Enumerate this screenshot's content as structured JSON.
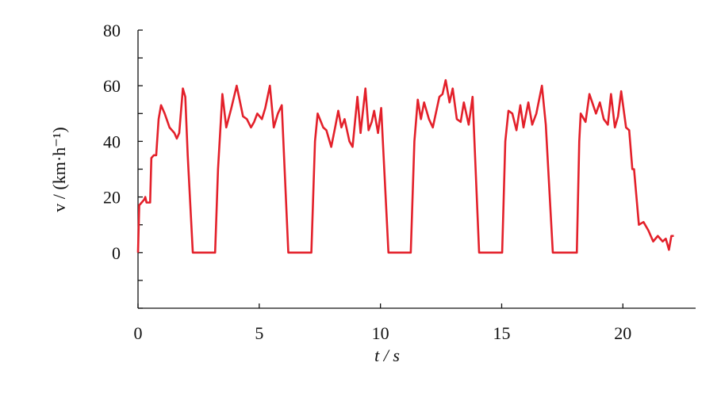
{
  "chart_data": {
    "type": "line",
    "x_label": "t / s",
    "y_label": "v / (km·h⁻¹)",
    "color": "#e3202a",
    "x": [
      0,
      0.05,
      0.15,
      0.25,
      0.3,
      0.35,
      0.5,
      0.55,
      0.65,
      0.75,
      0.85,
      0.95,
      1.1,
      1.3,
      1.5,
      1.6,
      1.7,
      1.85,
      1.95,
      2.05,
      2.26,
      3.18,
      3.3,
      3.48,
      3.64,
      3.85,
      4.07,
      4.33,
      4.49,
      4.66,
      4.79,
      4.92,
      5.11,
      5.25,
      5.44,
      5.6,
      5.77,
      5.93,
      6.2,
      7.15,
      7.3,
      7.41,
      7.64,
      7.77,
      7.97,
      8.13,
      8.26,
      8.39,
      8.52,
      8.72,
      8.85,
      9.05,
      9.18,
      9.38,
      9.51,
      9.64,
      9.74,
      9.9,
      10.03,
      10.33,
      11.25,
      11.4,
      11.54,
      11.67,
      11.8,
      12.0,
      12.16,
      12.43,
      12.56,
      12.69,
      12.85,
      12.98,
      13.15,
      13.31,
      13.44,
      13.64,
      13.8,
      14.07,
      15.02,
      15.15,
      15.28,
      15.44,
      15.61,
      15.77,
      15.9,
      16.1,
      16.26,
      16.43,
      16.66,
      16.82,
      17.11,
      18.1,
      18.2,
      18.26,
      18.46,
      18.62,
      18.89,
      19.05,
      19.21,
      19.38,
      19.51,
      19.67,
      19.8,
      19.93,
      20.13,
      20.26,
      20.39,
      20.46,
      20.56,
      20.66,
      20.85,
      21.05,
      21.25,
      21.44,
      21.64,
      21.77,
      21.9,
      22.0,
      22.1
    ],
    "values": [
      0,
      17,
      18,
      19,
      20,
      18,
      18,
      34,
      35,
      35,
      48,
      53,
      50,
      45,
      43,
      41,
      43,
      59,
      56,
      35,
      0,
      0,
      30,
      57,
      45,
      52,
      60,
      49,
      48,
      45,
      47,
      50,
      48,
      52,
      60,
      45,
      50,
      53,
      0,
      0,
      40,
      50,
      45,
      44,
      38,
      45,
      51,
      45,
      48,
      40,
      38,
      56,
      43,
      59,
      44,
      47,
      51,
      43,
      52,
      0,
      0,
      40,
      55,
      48,
      54,
      48,
      45,
      56,
      57,
      62,
      54,
      59,
      48,
      47,
      54,
      46,
      56,
      0,
      0,
      40,
      51,
      50,
      44,
      53,
      45,
      54,
      46,
      50,
      60,
      46,
      0,
      0,
      40,
      50,
      47,
      57,
      50,
      54,
      48,
      46,
      57,
      45,
      49,
      58,
      45,
      44,
      30,
      30,
      20,
      10,
      11,
      8,
      4,
      6,
      4,
      5,
      1,
      6,
      6
    ],
    "xlim": [
      0,
      23
    ],
    "ylim": [
      -20,
      80
    ],
    "xticks": [
      0,
      5,
      10,
      15,
      20
    ],
    "yticks": [
      0,
      20,
      40,
      60,
      80
    ],
    "y_minor_ticks": [
      -20,
      -10,
      10,
      30,
      50,
      70
    ]
  }
}
